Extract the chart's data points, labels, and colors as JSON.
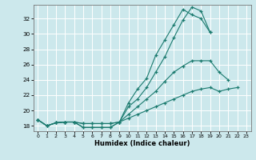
{
  "bg_color": "#cce8ec",
  "grid_color": "#ffffff",
  "line_color": "#1a7a6e",
  "xlabel": "Humidex (Indice chaleur)",
  "xlim": [
    -0.5,
    23.5
  ],
  "ylim": [
    17.3,
    33.8
  ],
  "xticks": [
    0,
    1,
    2,
    3,
    4,
    5,
    6,
    7,
    8,
    9,
    10,
    11,
    12,
    13,
    14,
    15,
    16,
    17,
    18,
    19,
    20,
    21,
    22,
    23
  ],
  "yticks": [
    18,
    20,
    22,
    24,
    26,
    28,
    30,
    32
  ],
  "lines": [
    [
      18.8,
      18.0,
      18.4,
      18.5,
      18.5,
      17.8,
      17.8,
      17.8,
      17.8,
      18.5,
      21.0,
      22.8,
      24.2,
      27.2,
      29.2,
      31.2,
      33.2,
      32.5,
      32.0,
      30.2,
      null,
      null,
      null,
      null
    ],
    [
      18.8,
      18.0,
      18.4,
      18.5,
      18.5,
      17.8,
      17.8,
      17.8,
      17.8,
      18.5,
      20.5,
      21.5,
      23.0,
      25.0,
      27.0,
      29.5,
      31.8,
      33.5,
      33.0,
      30.2,
      null,
      null,
      null,
      null
    ],
    [
      18.8,
      18.0,
      18.4,
      18.5,
      18.5,
      18.3,
      18.3,
      18.3,
      18.3,
      18.5,
      19.5,
      20.5,
      21.5,
      22.5,
      23.8,
      25.0,
      25.8,
      26.5,
      26.5,
      26.5,
      25.0,
      24.0,
      null,
      null
    ],
    [
      18.8,
      18.0,
      18.4,
      18.5,
      18.5,
      18.3,
      18.3,
      18.3,
      18.3,
      18.5,
      19.0,
      19.5,
      20.0,
      20.5,
      21.0,
      21.5,
      22.0,
      22.5,
      22.8,
      23.0,
      22.5,
      22.8,
      23.0,
      null
    ]
  ]
}
